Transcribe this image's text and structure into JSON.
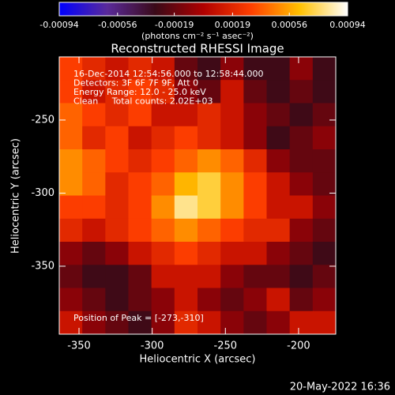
{
  "chart_data": {
    "type": "heatmap",
    "title": "Reconstructed RHESSI Image",
    "colorbar_label": "(photons cm⁻² s⁻¹ asec⁻²)",
    "x_label": "Heliocentric X (arcsec)",
    "y_label": "Heliocentric Y (arcsec)",
    "annotations": [
      "16-Dec-2014 12:54:56.000 to 12:58:44.000",
      "Detectors: 3F 6F 7F 9F, Att 0",
      "Energy Range: 12.0 - 25.0 keV",
      "Clean     Total counts: 2.02E+03"
    ],
    "peak_label": "Position of Peak = [-273,-310]",
    "footer": "20-May-2022 16:36",
    "xlim": [
      -363.5,
      -174.6
    ],
    "ylim": [
      -396.5,
      -206.8
    ],
    "xticks": [
      -350,
      -300,
      -250,
      -200
    ],
    "yticks": [
      -250,
      -300,
      -350
    ],
    "clim": [
      -0.00094,
      0.00094
    ],
    "cticks": [
      -0.00094,
      -0.00056,
      -0.00019,
      0.00019,
      0.00056,
      0.00094
    ],
    "colormap": [
      "#0000ff",
      "#5a2a9a",
      "#3a0a18",
      "#b00000",
      "#ff4000",
      "#ffc000",
      "#ffffff"
    ],
    "z": [
      [
        0.0003,
        0.0002,
        0.0001,
        0.0002,
        0.0001,
        -0.0002,
        -0.0003,
        -0.0001,
        -0.0003,
        -0.0003,
        -0.0001,
        -0.0003
      ],
      [
        0.0003,
        0.0001,
        0.0002,
        0.0003,
        0.0002,
        -0.0001,
        -0.0002,
        0.0001,
        -0.0002,
        -0.0003,
        -0.0002,
        -0.0003
      ],
      [
        0.0004,
        0.0003,
        0.0002,
        0.0003,
        0.0001,
        0.0001,
        0.0002,
        0.0001,
        -0.0001,
        -0.0002,
        -0.0003,
        -0.0002
      ],
      [
        0.0004,
        0.0002,
        0.0003,
        0.0001,
        0.0002,
        0.0003,
        0.0002,
        0.0001,
        -0.0001,
        -0.0003,
        -0.0002,
        -0.0001
      ],
      [
        0.0005,
        0.0004,
        0.0003,
        0.0002,
        0.0003,
        0.0004,
        0.0005,
        0.0004,
        0.0002,
        -0.0001,
        -0.0002,
        -0.0002
      ],
      [
        0.0005,
        0.0004,
        0.0002,
        0.0003,
        0.0004,
        0.0006,
        0.0007,
        0.0005,
        0.0003,
        0.0001,
        -0.0001,
        -0.0002
      ],
      [
        0.0003,
        0.0003,
        0.0002,
        0.0003,
        0.0005,
        0.0008,
        0.0007,
        0.0005,
        0.0003,
        0.0001,
        0.0001,
        -0.0001
      ],
      [
        0.0002,
        0.0001,
        0.0002,
        0.0003,
        0.0004,
        0.0005,
        0.0004,
        0.0003,
        0.0002,
        0.0002,
        -0.0001,
        -0.0002
      ],
      [
        -0.0001,
        -0.0002,
        -0.0001,
        0.0001,
        0.0002,
        0.0003,
        0.0002,
        0.0001,
        0.0001,
        -0.0001,
        -0.0002,
        -0.0003
      ],
      [
        -0.0002,
        -0.0003,
        -0.0003,
        -0.0002,
        0.0001,
        0.0001,
        0.0001,
        -0.0001,
        -0.0002,
        -0.0002,
        -0.0003,
        -0.0002
      ],
      [
        -0.0001,
        -0.0002,
        -0.0003,
        -0.0002,
        -0.0001,
        0.0001,
        -0.0001,
        -0.0002,
        -0.0001,
        0.0001,
        -0.0002,
        -0.0001
      ],
      [
        0.0001,
        -0.0001,
        -0.0002,
        -0.0003,
        -0.0001,
        0.0002,
        0.0001,
        -0.0001,
        -0.0002,
        -0.0001,
        0.0001,
        0.0001
      ]
    ]
  }
}
